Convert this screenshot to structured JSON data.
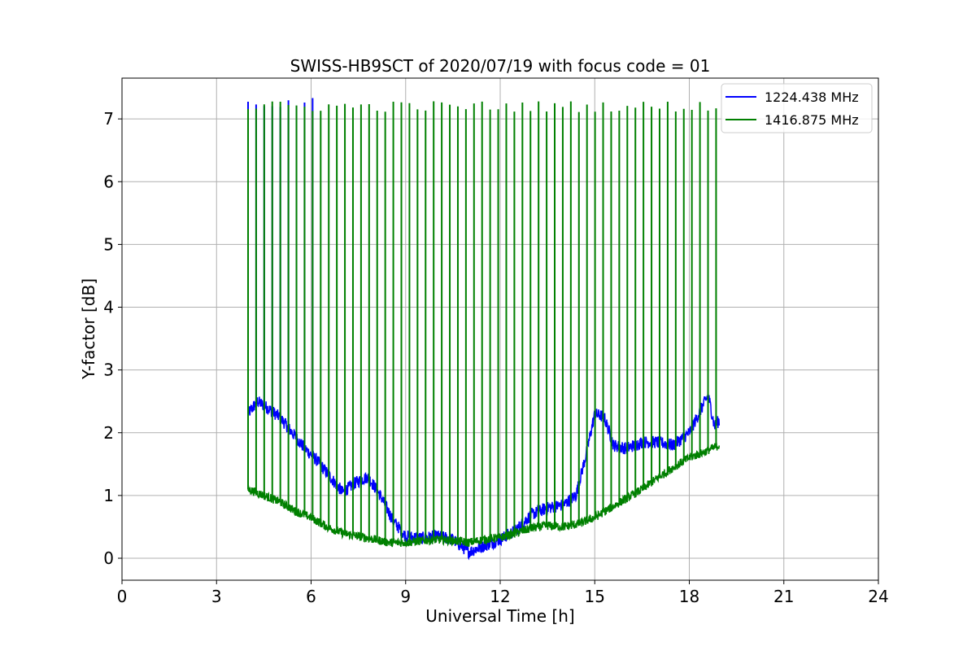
{
  "chart_data": {
    "type": "line",
    "title": "SWISS-HB9SCT of 2020/07/19 with focus code = 01",
    "xlabel": "Universal Time [h]",
    "ylabel": "Y-factor [dB]",
    "xlim": [
      0,
      24
    ],
    "ylim": [
      -0.35,
      7.65
    ],
    "xticks": [
      0,
      3,
      6,
      9,
      12,
      15,
      18,
      21,
      24
    ],
    "yticks": [
      0,
      1,
      2,
      3,
      4,
      5,
      6,
      7
    ],
    "grid": true,
    "legend_position": "top-right",
    "series": [
      {
        "name": "1224.438 MHz",
        "color": "#0000ff",
        "baseline": [
          [
            4.0,
            2.3
          ],
          [
            4.3,
            2.5
          ],
          [
            4.6,
            2.4
          ],
          [
            5.0,
            2.25
          ],
          [
            5.4,
            2.0
          ],
          [
            5.8,
            1.75
          ],
          [
            6.2,
            1.55
          ],
          [
            6.6,
            1.3
          ],
          [
            7.0,
            1.05
          ],
          [
            7.4,
            1.2
          ],
          [
            7.8,
            1.3
          ],
          [
            8.2,
            1.0
          ],
          [
            8.6,
            0.6
          ],
          [
            9.0,
            0.35
          ],
          [
            9.5,
            0.32
          ],
          [
            10.0,
            0.35
          ],
          [
            10.5,
            0.3
          ],
          [
            11.0,
            0.1
          ],
          [
            11.5,
            0.2
          ],
          [
            12.0,
            0.3
          ],
          [
            12.5,
            0.45
          ],
          [
            13.0,
            0.7
          ],
          [
            13.5,
            0.8
          ],
          [
            14.0,
            0.85
          ],
          [
            14.4,
            1.0
          ],
          [
            14.7,
            1.6
          ],
          [
            15.0,
            2.3
          ],
          [
            15.3,
            2.25
          ],
          [
            15.6,
            1.8
          ],
          [
            16.0,
            1.75
          ],
          [
            16.5,
            1.85
          ],
          [
            17.0,
            1.85
          ],
          [
            17.5,
            1.8
          ],
          [
            18.0,
            2.0
          ],
          [
            18.4,
            2.4
          ],
          [
            18.6,
            2.6
          ],
          [
            18.8,
            2.1
          ],
          [
            18.95,
            2.2
          ]
        ],
        "noise": 0.1,
        "spike_peak": 7.25,
        "spikes_end": 6.3
      },
      {
        "name": "1416.875 MHz",
        "color": "#008000",
        "baseline": [
          [
            4.0,
            1.1
          ],
          [
            4.5,
            1.0
          ],
          [
            5.0,
            0.9
          ],
          [
            5.5,
            0.75
          ],
          [
            6.0,
            0.65
          ],
          [
            6.5,
            0.5
          ],
          [
            7.0,
            0.4
          ],
          [
            7.5,
            0.35
          ],
          [
            8.0,
            0.3
          ],
          [
            8.5,
            0.25
          ],
          [
            9.0,
            0.25
          ],
          [
            9.5,
            0.28
          ],
          [
            10.0,
            0.3
          ],
          [
            10.5,
            0.28
          ],
          [
            11.0,
            0.25
          ],
          [
            11.5,
            0.3
          ],
          [
            12.0,
            0.33
          ],
          [
            12.5,
            0.4
          ],
          [
            13.0,
            0.48
          ],
          [
            13.5,
            0.52
          ],
          [
            14.0,
            0.5
          ],
          [
            14.5,
            0.55
          ],
          [
            15.0,
            0.65
          ],
          [
            15.5,
            0.8
          ],
          [
            16.0,
            0.95
          ],
          [
            16.5,
            1.1
          ],
          [
            17.0,
            1.28
          ],
          [
            17.5,
            1.45
          ],
          [
            18.0,
            1.6
          ],
          [
            18.5,
            1.7
          ],
          [
            18.95,
            1.8
          ]
        ],
        "noise": 0.07,
        "spike_peak": 7.2,
        "spikes_start": 4.0,
        "spikes_end": 18.85,
        "spike_count": 59
      }
    ]
  }
}
